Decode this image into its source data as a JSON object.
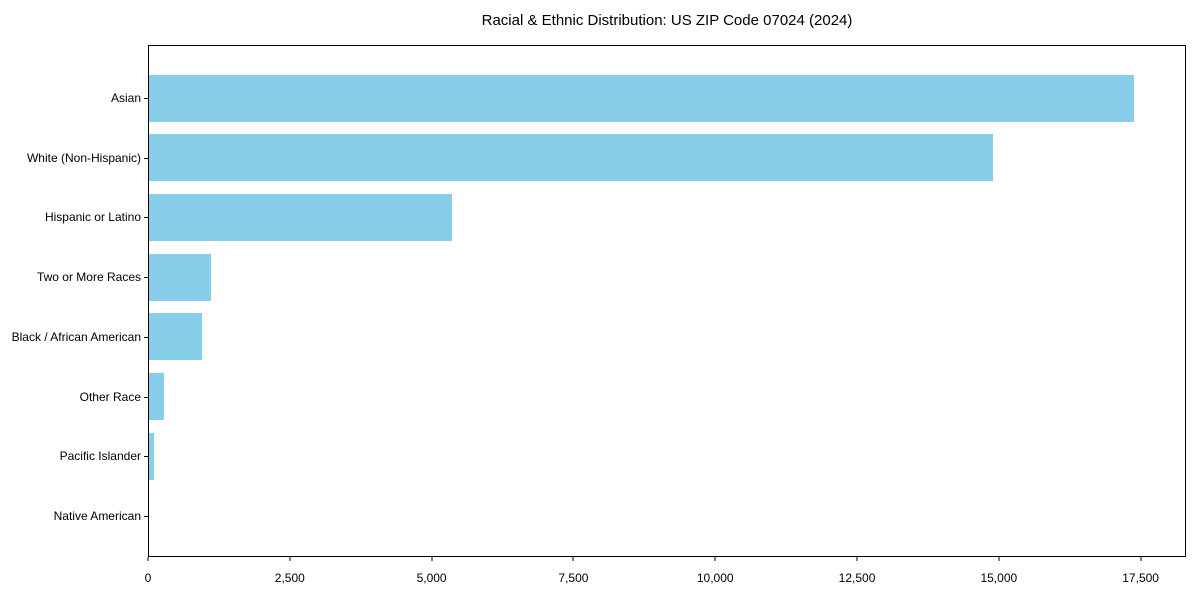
{
  "chart_data": {
    "type": "bar",
    "orientation": "horizontal",
    "title": "Racial & Ethnic Distribution: US ZIP Code 07024 (2024)",
    "categories": [
      "Asian",
      "White (Non-Hispanic)",
      "Hispanic or Latino",
      "Two or More Races",
      "Black / African American",
      "Other Race",
      "Pacific Islander",
      "Native American"
    ],
    "values": [
      17400,
      14900,
      5350,
      1100,
      930,
      260,
      90,
      0
    ],
    "xlabel": "",
    "ylabel": "",
    "xlim": [
      0,
      18300
    ],
    "x_ticks": [
      0,
      2500,
      5000,
      7500,
      10000,
      12500,
      15000,
      17500
    ],
    "x_tick_labels": [
      "0",
      "2,500",
      "5,000",
      "7,500",
      "10,000",
      "12,500",
      "15,000",
      "17,500"
    ],
    "bar_color": "#87CEEB",
    "frame_color": "#000000",
    "background_color": "#ffffff",
    "grid": false,
    "legend": null
  }
}
